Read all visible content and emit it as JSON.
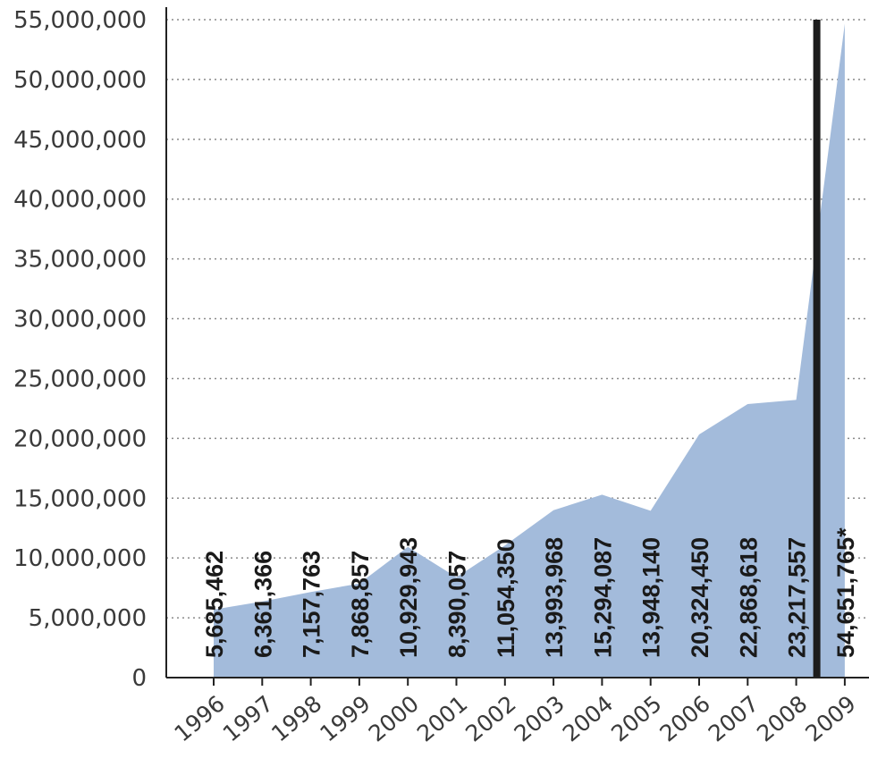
{
  "chart_data": {
    "type": "area",
    "categories": [
      "1996",
      "1997",
      "1998",
      "1999",
      "2000",
      "2001",
      "2002",
      "2003",
      "2004",
      "2005",
      "2006",
      "2007",
      "2008",
      "2009"
    ],
    "series": [
      {
        "values": [
          5685462,
          6361366,
          7157763,
          7868857,
          10929943,
          8390057,
          11054350,
          13993968,
          15294087,
          13948140,
          20324450,
          22868618,
          23217557,
          54651765
        ]
      }
    ],
    "data_labels": [
      "5,685,462",
      "6,361,366",
      "7,157,763",
      "7,868,857",
      "10,929,943",
      "8,390,057",
      "11,054,350",
      "13,993,968",
      "15,294,087",
      "13,948,140",
      "20,324,450",
      "22,868,618",
      "23,217,557",
      "54,651,765*"
    ],
    "y_ticks": [
      "0",
      "5,000,000",
      "10,000,000",
      "15,000,000",
      "20,000,000",
      "25,000,000",
      "30,000,000",
      "35,000,000",
      "40,000,000",
      "45,000,000",
      "50,000,000",
      "55,000,000"
    ],
    "ylim": [
      0,
      55000000
    ],
    "grid": "horizontal dotted",
    "marker_line_between": [
      "2008",
      "2009"
    ],
    "title": "",
    "xlabel": "",
    "ylabel": "",
    "colors": {
      "area": "#a3bbdb",
      "marker": "#1c1c1c",
      "grid": "#8a8a8a",
      "axis": "#222222"
    }
  }
}
